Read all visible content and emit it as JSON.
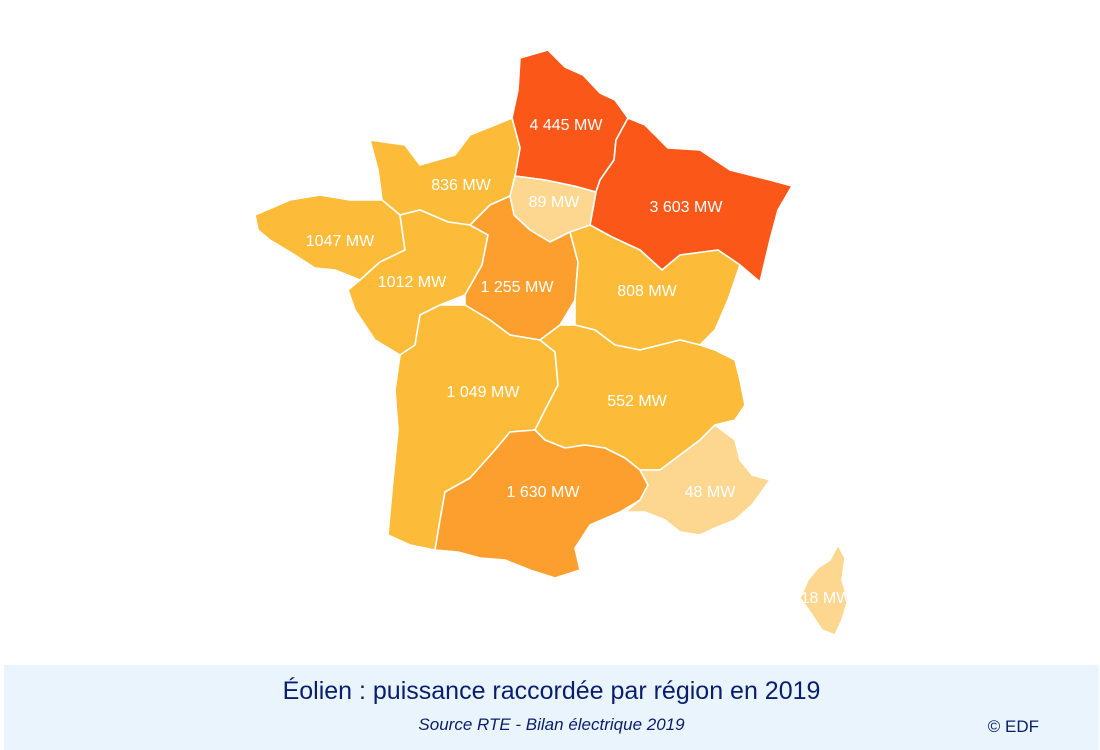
{
  "map": {
    "regions": [
      {
        "id": "hauts-de-france",
        "label": "4 445 MW",
        "value_mw": 4445,
        "color": "#fb5719"
      },
      {
        "id": "grand-est",
        "label": "3 603 MW",
        "value_mw": 3603,
        "color": "#fb5719"
      },
      {
        "id": "ile-de-france",
        "label": "89 MW",
        "value_mw": 89,
        "color": "#fdd690"
      },
      {
        "id": "normandie",
        "label": "836 MW",
        "value_mw": 836,
        "color": "#fcbc3a"
      },
      {
        "id": "bretagne",
        "label": "1047 MW",
        "value_mw": 1047,
        "color": "#fcbc3a"
      },
      {
        "id": "pays-de-la-loire",
        "label": "1012 MW",
        "value_mw": 1012,
        "color": "#fcbc3a"
      },
      {
        "id": "centre-val-de-loire",
        "label": "1 255 MW",
        "value_mw": 1255,
        "color": "#fc9f2e"
      },
      {
        "id": "bourgogne-franche-comte",
        "label": "808 MW",
        "value_mw": 808,
        "color": "#fcbc3a"
      },
      {
        "id": "nouvelle-aquitaine",
        "label": "1 049 MW",
        "value_mw": 1049,
        "color": "#fcbc3a"
      },
      {
        "id": "auvergne-rhone-alpes",
        "label": "552 MW",
        "value_mw": 552,
        "color": "#fcbc3a"
      },
      {
        "id": "occitanie",
        "label": "1 630 MW",
        "value_mw": 1630,
        "color": "#fc9f2e"
      },
      {
        "id": "provence-alpes-cote-d-azur",
        "label": "48 MW",
        "value_mw": 48,
        "color": "#fdd690"
      },
      {
        "id": "corse",
        "label": "18 MW",
        "value_mw": 18,
        "color": "#fdd690"
      }
    ]
  },
  "caption": {
    "title": "Éolien : puissance raccordée par région en 2019",
    "source": "Source RTE - Bilan électrique 2019",
    "copyright": "© EDF",
    "background": "#e9f4fc",
    "text_color": "#0a1e6e"
  }
}
